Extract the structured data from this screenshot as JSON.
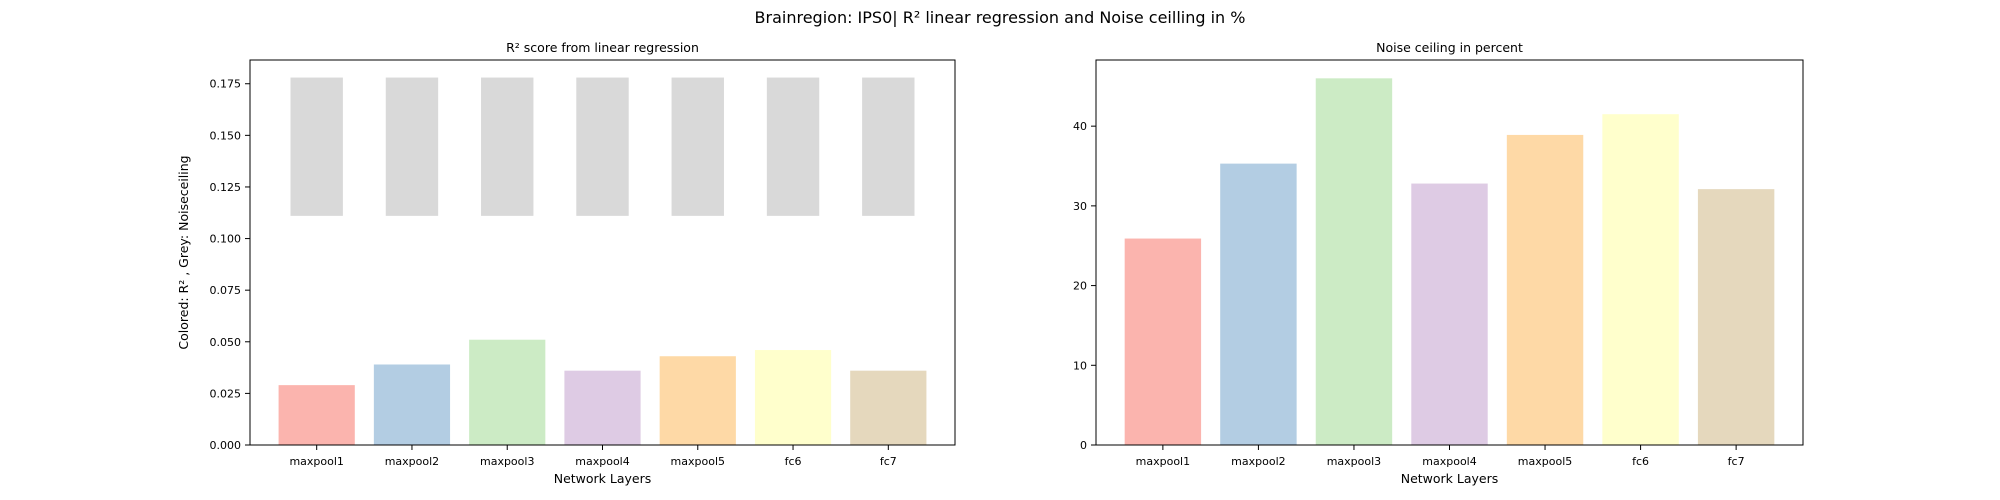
{
  "figure": {
    "suptitle": "Brainregion: IPS0| R² linear regression and Noise ceilling in %"
  },
  "chart_data": [
    {
      "type": "bar",
      "title": "R² score from linear regression",
      "xlabel": "Network Layers",
      "ylabel": "Colored: R² , Grey: Noiseceiling",
      "categories": [
        "maxpool1",
        "maxpool2",
        "maxpool3",
        "maxpool4",
        "maxpool5",
        "fc6",
        "fc7"
      ],
      "ylim": [
        0,
        0.1865
      ],
      "yticks": [
        0.0,
        0.025,
        0.05,
        0.075,
        0.1,
        0.125,
        0.15,
        0.175
      ],
      "ytick_labels": [
        "0.000",
        "0.025",
        "0.050",
        "0.075",
        "0.100",
        "0.125",
        "0.150",
        "0.175"
      ],
      "grid": false,
      "series": [
        {
          "values": [
            0.029,
            0.039,
            0.051,
            0.036,
            0.043,
            0.046,
            0.036
          ],
          "colors": [
            "#fbb4ae",
            "#b3cde3",
            "#ccebc5",
            "#decbe4",
            "#fed9a6",
            "#ffffcc",
            "#e5d8bd"
          ]
        },
        {
          "bottoms": [
            0.111,
            0.111,
            0.111,
            0.111,
            0.111,
            0.111,
            0.111
          ],
          "tops": [
            0.178,
            0.178,
            0.178,
            0.178,
            0.178,
            0.178,
            0.178
          ],
          "color": "#d9d9d9"
        }
      ]
    },
    {
      "type": "bar",
      "title": "Noise ceiling in percent",
      "xlabel": "Network Layers",
      "ylabel": "",
      "categories": [
        "maxpool1",
        "maxpool2",
        "maxpool3",
        "maxpool4",
        "maxpool5",
        "fc6",
        "fc7"
      ],
      "ylim": [
        0,
        48.3
      ],
      "yticks": [
        0,
        10,
        20,
        30,
        40
      ],
      "ytick_labels": [
        "0",
        "10",
        "20",
        "30",
        "40"
      ],
      "grid": false,
      "series": [
        {
          "values": [
            25.9,
            35.3,
            46.0,
            32.8,
            38.9,
            41.5,
            32.1
          ],
          "colors": [
            "#fbb4ae",
            "#b3cde3",
            "#ccebc5",
            "#decbe4",
            "#fed9a6",
            "#ffffcc",
            "#e5d8bd"
          ]
        }
      ]
    }
  ]
}
